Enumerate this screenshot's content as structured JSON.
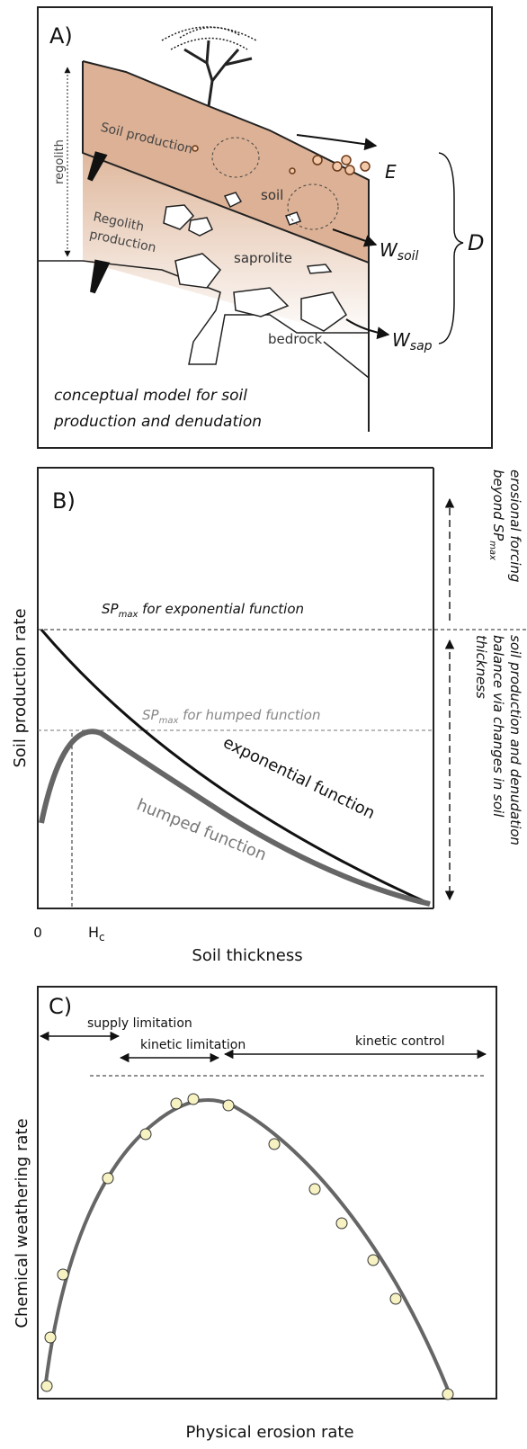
{
  "panel_a": {
    "label": "A)",
    "regolith": "regolith",
    "soil_production": "Soil production",
    "soil": "soil",
    "regolith_production": [
      "Regolith",
      "production"
    ],
    "saprolite": "saprolite",
    "bedrock": "bedrock",
    "e": "E",
    "w_soil": {
      "main": "W",
      "sub": "soil"
    },
    "w_sap": {
      "main": "W",
      "sub": "sap"
    },
    "d": "D",
    "caption": [
      "conceptual model for soil",
      "production and denudation"
    ]
  },
  "panel_b": {
    "label": "B)",
    "y_label": "Soil production rate",
    "x_label": "Soil thickness",
    "x_origin": "0",
    "h_c": {
      "main": "H",
      "sub": "c"
    },
    "sp_exponential": {
      "main": "SP",
      "sub": "max",
      "rest": " for exponential function"
    },
    "sp_humped": {
      "main": "SP",
      "sub": "max",
      "rest": " for humped function"
    },
    "exponential": "exponential function",
    "humped": "humped function",
    "erosional": {
      "line1": "erosional forcing",
      "line2": "beyond SP",
      "sub": "max"
    },
    "balance": [
      "soil production and  denudation",
      "balance via changes in soil",
      "thickness"
    ]
  },
  "panel_c": {
    "label": "C)",
    "supply": "supply limitation",
    "kinetic_limitation": "kinetic limitation",
    "kinetic_control": "kinetic control",
    "y_label": "Chemical weathering rate",
    "x_label": "Physical erosion rate"
  }
}
